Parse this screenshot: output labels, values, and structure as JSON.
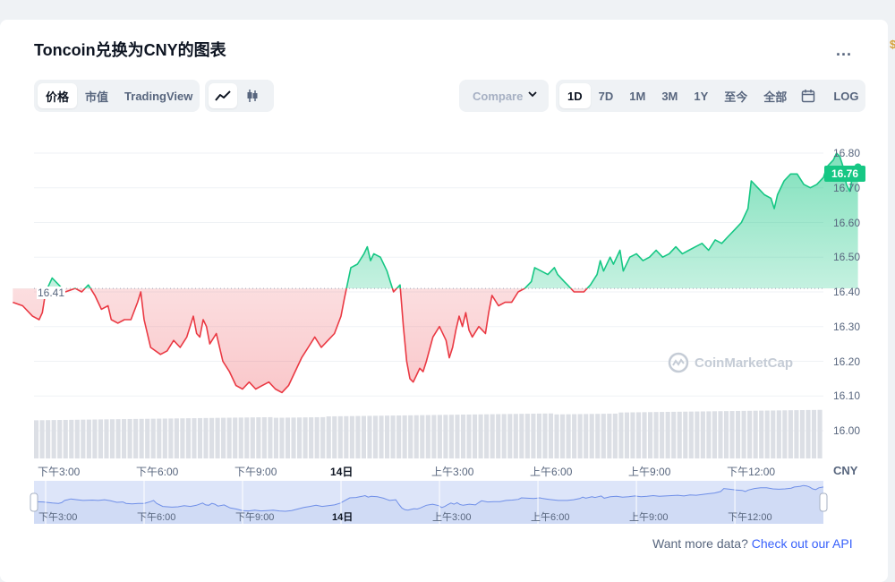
{
  "title": "Toncoin兑换为CNY的图表",
  "more_label": "...",
  "view_tabs": [
    {
      "label": "价格",
      "active": true
    },
    {
      "label": "市值",
      "active": false
    },
    {
      "label": "TradingView",
      "active": false
    }
  ],
  "chart_type_icons": [
    "line-chart-icon",
    "candlestick-icon"
  ],
  "compare_label": "Compare",
  "range_tabs": [
    {
      "label": "1D",
      "active": true
    },
    {
      "label": "7D",
      "active": false
    },
    {
      "label": "1M",
      "active": false
    },
    {
      "label": "3M",
      "active": false
    },
    {
      "label": "1Y",
      "active": false
    },
    {
      "label": "至今",
      "active": false
    },
    {
      "label": "全部",
      "active": false
    }
  ],
  "calendar_icon": "calendar-icon",
  "log_label": "LOG",
  "currency_label": "CNY",
  "watermark": "CoinMarketCap",
  "api_text": "Want more data?",
  "api_link": "Check out our API",
  "colors": {
    "up": "#16c784",
    "down": "#ea3943",
    "accent": "#3861fb",
    "volume": "#dcdfe5"
  },
  "chart_data": {
    "type": "line",
    "title": "Toncoin兑换为CNY的图表",
    "y_ticks": [
      "16.80",
      "16.70",
      "16.60",
      "16.50",
      "16.40",
      "16.30",
      "16.20",
      "16.10",
      "16.00"
    ],
    "ylim": [
      15.92,
      16.88
    ],
    "reference_value": 16.41,
    "reference_label": "16.41",
    "current_value": 16.76,
    "current_label": "16.76",
    "x_ticks": [
      "下午3:00",
      "下午6:00",
      "下午9:00",
      "14日",
      "上午3:00",
      "上午6:00",
      "上午9:00",
      "下午12:00"
    ],
    "x_tick_hours": [
      3,
      6,
      9,
      12,
      15,
      18,
      21,
      24
    ],
    "xlim_hours": [
      2,
      25.85
    ],
    "legend": "none",
    "series": [
      {
        "values": [
          [
            2.0,
            16.37
          ],
          [
            2.3,
            16.36
          ],
          [
            2.6,
            16.33
          ],
          [
            2.8,
            16.32
          ],
          [
            2.9,
            16.34
          ],
          [
            3.0,
            16.4
          ],
          [
            3.1,
            16.42
          ],
          [
            3.2,
            16.44
          ],
          [
            3.4,
            16.42
          ],
          [
            3.6,
            16.4
          ],
          [
            3.9,
            16.41
          ],
          [
            4.1,
            16.4
          ],
          [
            4.3,
            16.42
          ],
          [
            4.5,
            16.39
          ],
          [
            4.7,
            16.35
          ],
          [
            4.9,
            16.36
          ],
          [
            5.0,
            16.32
          ],
          [
            5.2,
            16.31
          ],
          [
            5.4,
            16.32
          ],
          [
            5.6,
            16.32
          ],
          [
            5.8,
            16.37
          ],
          [
            5.9,
            16.4
          ],
          [
            6.0,
            16.32
          ],
          [
            6.2,
            16.24
          ],
          [
            6.5,
            16.22
          ],
          [
            6.7,
            16.23
          ],
          [
            6.9,
            16.26
          ],
          [
            7.1,
            16.24
          ],
          [
            7.3,
            16.27
          ],
          [
            7.5,
            16.33
          ],
          [
            7.6,
            16.28
          ],
          [
            7.7,
            16.27
          ],
          [
            7.8,
            16.32
          ],
          [
            7.9,
            16.3
          ],
          [
            8.0,
            16.25
          ],
          [
            8.2,
            16.28
          ],
          [
            8.4,
            16.2
          ],
          [
            8.6,
            16.17
          ],
          [
            8.8,
            16.13
          ],
          [
            9.0,
            16.12
          ],
          [
            9.2,
            16.14
          ],
          [
            9.4,
            16.12
          ],
          [
            9.6,
            16.13
          ],
          [
            9.8,
            16.14
          ],
          [
            10.0,
            16.12
          ],
          [
            10.2,
            16.11
          ],
          [
            10.4,
            16.13
          ],
          [
            10.6,
            16.17
          ],
          [
            10.8,
            16.21
          ],
          [
            11.0,
            16.24
          ],
          [
            11.2,
            16.27
          ],
          [
            11.4,
            16.24
          ],
          [
            11.6,
            16.26
          ],
          [
            11.8,
            16.28
          ],
          [
            12.0,
            16.33
          ],
          [
            12.1,
            16.38
          ],
          [
            12.3,
            16.47
          ],
          [
            12.5,
            16.48
          ],
          [
            12.7,
            16.51
          ],
          [
            12.8,
            16.53
          ],
          [
            12.9,
            16.49
          ],
          [
            13.0,
            16.51
          ],
          [
            13.2,
            16.5
          ],
          [
            13.4,
            16.46
          ],
          [
            13.5,
            16.43
          ],
          [
            13.6,
            16.4
          ],
          [
            13.8,
            16.42
          ],
          [
            13.9,
            16.3
          ],
          [
            14.0,
            16.2
          ],
          [
            14.1,
            16.15
          ],
          [
            14.2,
            16.14
          ],
          [
            14.3,
            16.16
          ],
          [
            14.4,
            16.18
          ],
          [
            14.5,
            16.17
          ],
          [
            14.6,
            16.2
          ],
          [
            14.8,
            16.27
          ],
          [
            15.0,
            16.3
          ],
          [
            15.2,
            16.26
          ],
          [
            15.3,
            16.21
          ],
          [
            15.4,
            16.24
          ],
          [
            15.5,
            16.29
          ],
          [
            15.6,
            16.33
          ],
          [
            15.7,
            16.3
          ],
          [
            15.8,
            16.34
          ],
          [
            15.9,
            16.29
          ],
          [
            16.0,
            16.27
          ],
          [
            16.2,
            16.3
          ],
          [
            16.4,
            16.28
          ],
          [
            16.5,
            16.34
          ],
          [
            16.6,
            16.39
          ],
          [
            16.8,
            16.36
          ],
          [
            17.0,
            16.37
          ],
          [
            17.2,
            16.37
          ],
          [
            17.4,
            16.4
          ],
          [
            17.6,
            16.41
          ],
          [
            17.8,
            16.43
          ],
          [
            17.9,
            16.47
          ],
          [
            18.1,
            16.46
          ],
          [
            18.3,
            16.45
          ],
          [
            18.5,
            16.47
          ],
          [
            18.6,
            16.45
          ],
          [
            18.8,
            16.43
          ],
          [
            18.9,
            16.42
          ],
          [
            19.1,
            16.4
          ],
          [
            19.4,
            16.4
          ],
          [
            19.6,
            16.42
          ],
          [
            19.8,
            16.45
          ],
          [
            19.9,
            16.49
          ],
          [
            20.0,
            16.46
          ],
          [
            20.2,
            16.5
          ],
          [
            20.3,
            16.48
          ],
          [
            20.4,
            16.5
          ],
          [
            20.5,
            16.52
          ],
          [
            20.6,
            16.46
          ],
          [
            20.8,
            16.5
          ],
          [
            21.0,
            16.51
          ],
          [
            21.2,
            16.49
          ],
          [
            21.4,
            16.5
          ],
          [
            21.6,
            16.52
          ],
          [
            21.8,
            16.5
          ],
          [
            22.0,
            16.51
          ],
          [
            22.2,
            16.53
          ],
          [
            22.4,
            16.51
          ],
          [
            22.6,
            16.52
          ],
          [
            22.8,
            16.53
          ],
          [
            23.0,
            16.54
          ],
          [
            23.2,
            16.52
          ],
          [
            23.4,
            16.55
          ],
          [
            23.6,
            16.54
          ],
          [
            23.8,
            16.56
          ],
          [
            24.0,
            16.58
          ],
          [
            24.2,
            16.6
          ],
          [
            24.4,
            16.64
          ],
          [
            24.5,
            16.72
          ],
          [
            24.7,
            16.7
          ],
          [
            24.9,
            16.68
          ],
          [
            25.1,
            16.67
          ],
          [
            25.2,
            16.64
          ],
          [
            25.3,
            16.68
          ],
          [
            25.5,
            16.72
          ],
          [
            25.7,
            16.74
          ],
          [
            25.9,
            16.74
          ],
          [
            26.1,
            16.71
          ],
          [
            26.3,
            16.7
          ],
          [
            26.5,
            16.71
          ],
          [
            26.7,
            16.73
          ],
          [
            26.8,
            16.76
          ],
          [
            27.0,
            16.78
          ],
          [
            27.1,
            16.8
          ],
          [
            27.2,
            16.79
          ],
          [
            27.3,
            16.76
          ],
          [
            27.4,
            16.71
          ],
          [
            27.5,
            16.69
          ],
          [
            27.6,
            16.74
          ],
          [
            27.75,
            16.76
          ]
        ]
      }
    ],
    "volume": {
      "start": 16.03,
      "end": 16.06
    }
  },
  "navigator": {
    "labels": [
      "下午3:00",
      "下午6:00",
      "下午9:00",
      "14日",
      "上午3:00",
      "上午6:00",
      "上午9:00",
      "下午12:00"
    ]
  }
}
